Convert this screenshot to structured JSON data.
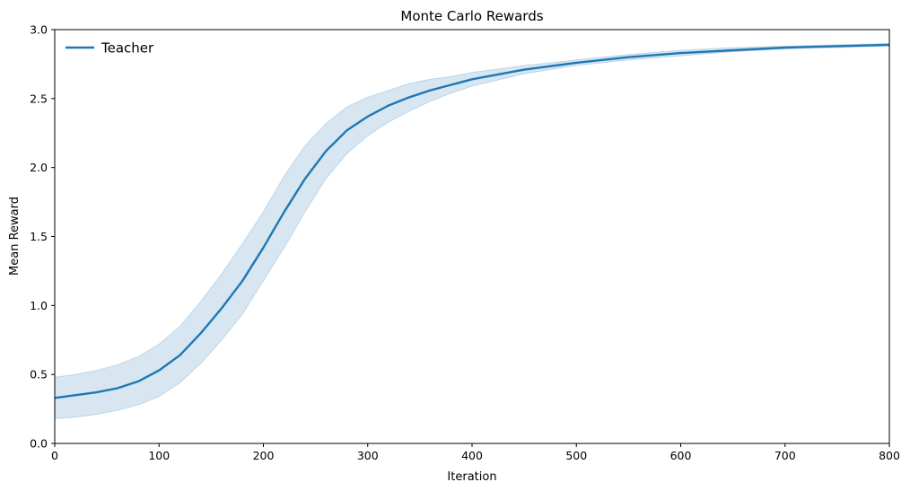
{
  "chart_data": {
    "type": "line",
    "title": "Monte Carlo Rewards",
    "xlabel": "Iteration",
    "ylabel": "Mean Reward",
    "xlim": [
      0,
      800
    ],
    "ylim": [
      0,
      3.0
    ],
    "xticks": [
      0,
      100,
      200,
      300,
      400,
      500,
      600,
      700,
      800
    ],
    "xtick_labels": [
      "0",
      "100",
      "200",
      "300",
      "400",
      "500",
      "600",
      "700",
      "800"
    ],
    "yticks": [
      0,
      0.5,
      1.0,
      1.5,
      2.0,
      2.5,
      3.0
    ],
    "ytick_labels": [
      "0.0",
      "0.5",
      "1.0",
      "1.5",
      "2.0",
      "2.5",
      "3.0"
    ],
    "grid": false,
    "legend_position": "top-left",
    "series": [
      {
        "name": "Teacher",
        "color": "#1f77b4",
        "band_color": "#1f77b4",
        "x": [
          0,
          20,
          40,
          60,
          80,
          100,
          120,
          140,
          160,
          180,
          200,
          220,
          240,
          260,
          280,
          300,
          320,
          340,
          360,
          380,
          400,
          450,
          500,
          550,
          600,
          650,
          700,
          750,
          800
        ],
        "y": [
          0.33,
          0.35,
          0.37,
          0.4,
          0.45,
          0.53,
          0.64,
          0.8,
          0.98,
          1.18,
          1.42,
          1.68,
          1.92,
          2.12,
          2.27,
          2.37,
          2.45,
          2.51,
          2.56,
          2.6,
          2.64,
          2.71,
          2.76,
          2.8,
          2.83,
          2.85,
          2.87,
          2.88,
          2.89
        ],
        "lower": [
          0.18,
          0.19,
          0.21,
          0.24,
          0.28,
          0.34,
          0.44,
          0.58,
          0.75,
          0.94,
          1.18,
          1.42,
          1.68,
          1.92,
          2.1,
          2.23,
          2.33,
          2.41,
          2.48,
          2.54,
          2.59,
          2.68,
          2.74,
          2.78,
          2.81,
          2.84,
          2.86,
          2.87,
          2.88
        ],
        "upper": [
          0.48,
          0.5,
          0.53,
          0.57,
          0.63,
          0.72,
          0.85,
          1.03,
          1.23,
          1.45,
          1.68,
          1.94,
          2.16,
          2.32,
          2.44,
          2.51,
          2.56,
          2.61,
          2.64,
          2.66,
          2.69,
          2.74,
          2.78,
          2.82,
          2.85,
          2.87,
          2.88,
          2.89,
          2.9
        ]
      }
    ]
  }
}
